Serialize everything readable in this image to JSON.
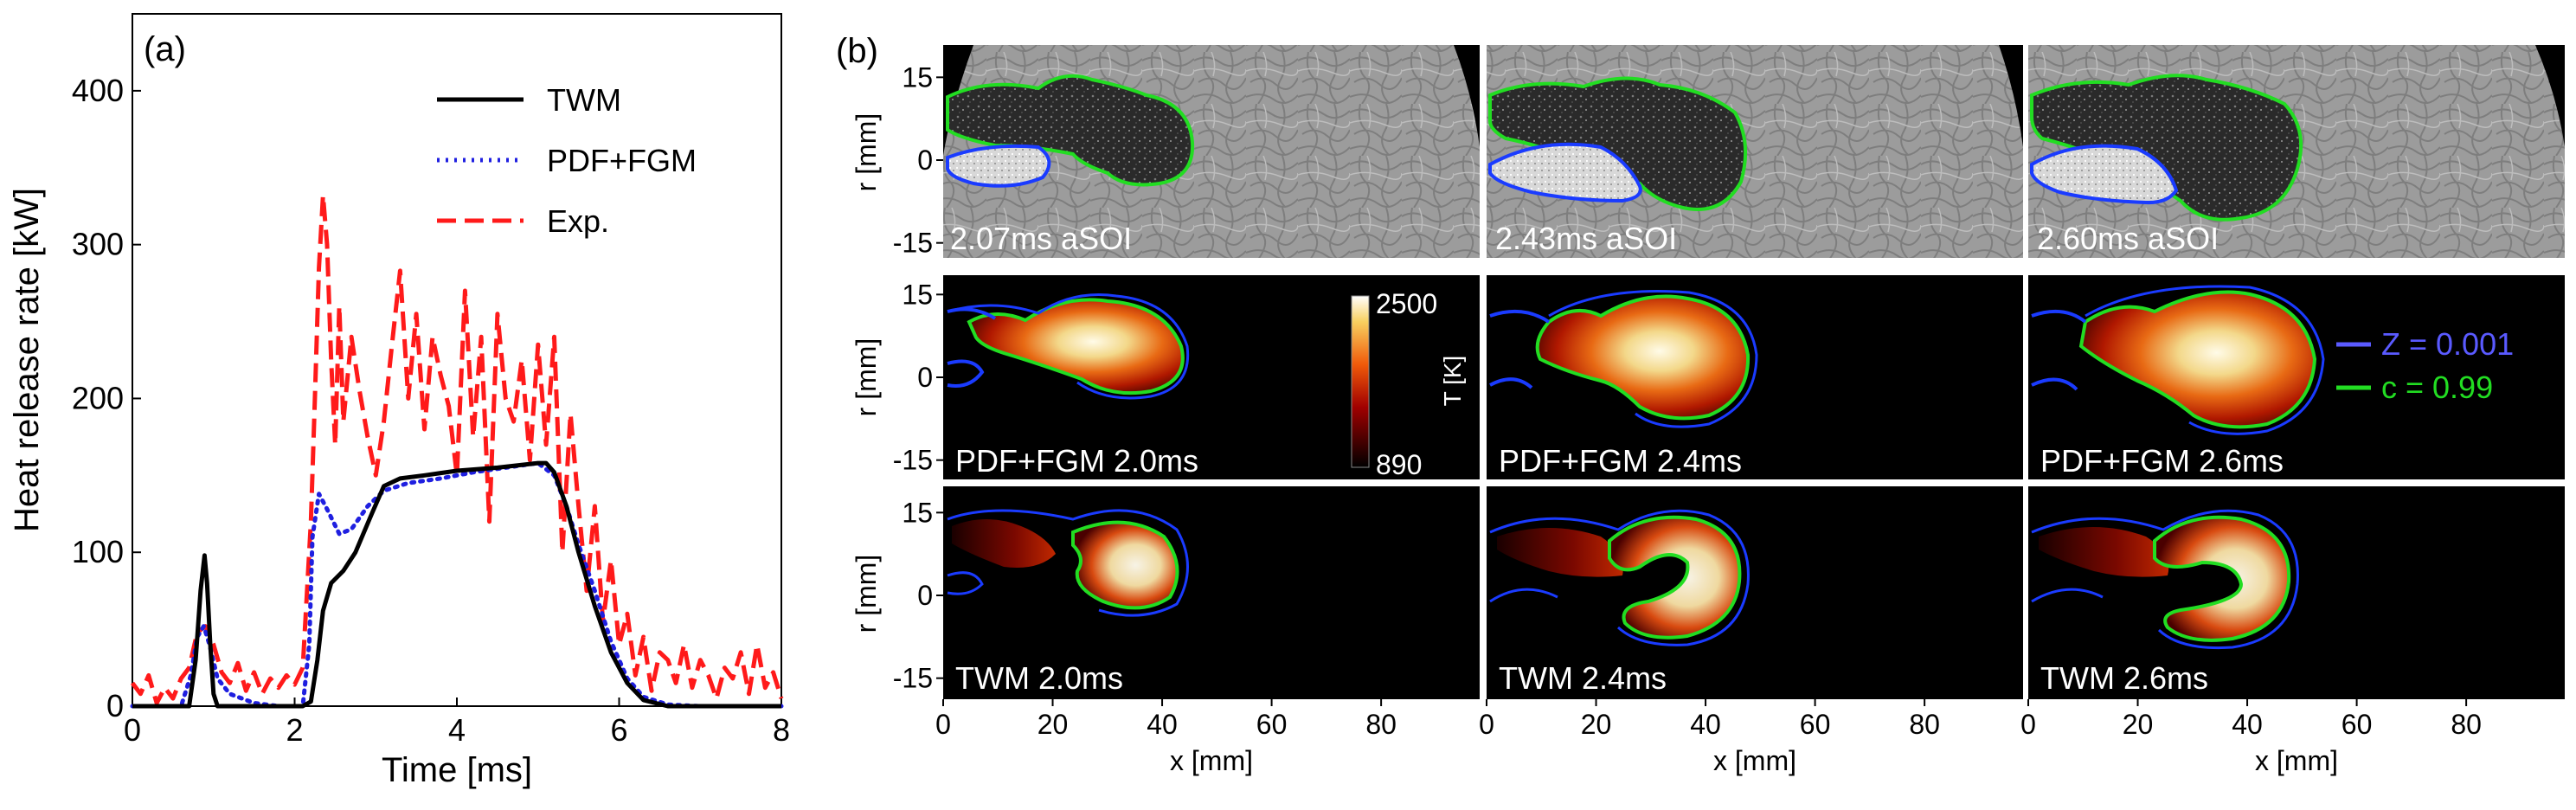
{
  "chart_data": [
    {
      "panel_label": "(a)",
      "type": "line",
      "xlabel": "Time [ms]",
      "ylabel": "Heat release rate [kW]",
      "xlim": [
        0,
        8
      ],
      "ylim": [
        0,
        450
      ],
      "xticks": [
        "0",
        "2",
        "4",
        "6",
        "8"
      ],
      "yticks": [
        "0",
        "100",
        "200",
        "300",
        "400"
      ],
      "legend_position": "top-right",
      "colors": {
        "TWM": "#000000",
        "PDF+FGM": "#1f1fe0",
        "Exp.": "#ff1a1a"
      },
      "series": [
        {
          "name": "TWM",
          "style": "solid",
          "x": [
            0,
            0.7,
            0.78,
            0.84,
            0.89,
            0.92,
            0.96,
            1.0,
            1.05,
            1.1,
            2.1,
            2.2,
            2.28,
            2.35,
            2.45,
            2.6,
            2.75,
            2.95,
            3.1,
            3.3,
            3.6,
            4.0,
            4.5,
            5.0,
            5.1,
            5.2,
            5.35,
            5.5,
            5.7,
            5.9,
            6.1,
            6.3,
            6.6,
            7.0,
            8.0
          ],
          "y": [
            0,
            0,
            30,
            75,
            98,
            80,
            40,
            8,
            0,
            0,
            0,
            3,
            30,
            62,
            80,
            88,
            100,
            125,
            143,
            148,
            150,
            153,
            155,
            158,
            158,
            152,
            130,
            100,
            65,
            35,
            15,
            4,
            0,
            0,
            0
          ]
        },
        {
          "name": "PDF+FGM",
          "style": "dotted",
          "x": [
            0,
            0.6,
            0.72,
            0.8,
            0.88,
            0.95,
            1.05,
            1.2,
            1.5,
            1.8,
            2.1,
            2.18,
            2.22,
            2.3,
            2.4,
            2.55,
            2.7,
            2.9,
            3.1,
            3.4,
            3.8,
            4.2,
            4.6,
            5.0,
            5.2,
            5.35,
            5.5,
            5.7,
            5.9,
            6.1,
            6.3,
            6.6,
            7.0,
            8.0
          ],
          "y": [
            0,
            0,
            20,
            45,
            52,
            40,
            18,
            8,
            2,
            0,
            0,
            40,
            110,
            138,
            128,
            112,
            115,
            130,
            140,
            145,
            148,
            152,
            155,
            158,
            150,
            130,
            105,
            75,
            42,
            18,
            6,
            1,
            0,
            0
          ]
        },
        {
          "name": "Exp.",
          "style": "dashed",
          "x": [
            0,
            0.1,
            0.2,
            0.3,
            0.4,
            0.5,
            0.6,
            0.7,
            0.8,
            0.9,
            1.0,
            1.1,
            1.2,
            1.3,
            1.4,
            1.5,
            1.6,
            1.7,
            1.8,
            1.9,
            2.0,
            2.1,
            2.2,
            2.25,
            2.3,
            2.35,
            2.4,
            2.45,
            2.5,
            2.55,
            2.6,
            2.7,
            2.8,
            2.9,
            3.0,
            3.1,
            3.2,
            3.3,
            3.4,
            3.5,
            3.6,
            3.7,
            3.8,
            3.9,
            4.0,
            4.1,
            4.2,
            4.3,
            4.4,
            4.5,
            4.6,
            4.7,
            4.8,
            4.9,
            5.0,
            5.1,
            5.2,
            5.3,
            5.4,
            5.5,
            5.6,
            5.7,
            5.8,
            5.9,
            6.0,
            6.1,
            6.2,
            6.3,
            6.4,
            6.5,
            6.6,
            6.7,
            6.8,
            6.9,
            7.0,
            7.1,
            7.2,
            7.3,
            7.4,
            7.5,
            7.6,
            7.7,
            7.8,
            7.9,
            8.0
          ],
          "y": [
            15,
            8,
            20,
            2,
            12,
            5,
            18,
            25,
            48,
            52,
            40,
            22,
            15,
            28,
            10,
            22,
            8,
            18,
            12,
            20,
            14,
            25,
            120,
            200,
            285,
            332,
            300,
            225,
            170,
            260,
            185,
            240,
            205,
            175,
            150,
            185,
            235,
            283,
            200,
            255,
            180,
            240,
            215,
            195,
            150,
            270,
            175,
            240,
            120,
            255,
            200,
            185,
            225,
            160,
            235,
            170,
            240,
            100,
            190,
            130,
            75,
            130,
            55,
            95,
            40,
            60,
            20,
            45,
            10,
            35,
            30,
            15,
            40,
            12,
            30,
            20,
            5,
            25,
            18,
            35,
            8,
            40,
            12,
            22,
            5
          ]
        }
      ]
    },
    {
      "panel_label": "(b)",
      "type": "heatmap",
      "xlabel": "x [mm]",
      "ylabel": "r [mm]",
      "xticks": [
        "0",
        "20",
        "40",
        "60",
        "80"
      ],
      "yticks": [
        "15",
        "0",
        "-15"
      ],
      "colorbar": {
        "label": "T [K]",
        "max_label": "2500",
        "min_label": "890"
      },
      "contour_legend": [
        {
          "label": "Z = 0.001",
          "color": "#5a5aff"
        },
        {
          "label": "c = 0.99",
          "color": "#22dd22"
        }
      ],
      "rows": [
        {
          "kind": "experiment",
          "panels": [
            "2.07ms aSOI",
            "2.43ms aSOI",
            "2.60ms aSOI"
          ]
        },
        {
          "kind": "PDF+FGM",
          "panels": [
            "PDF+FGM 2.0ms",
            "PDF+FGM 2.4ms",
            "PDF+FGM 2.6ms"
          ]
        },
        {
          "kind": "TWM",
          "panels": [
            "TWM 2.0ms",
            "TWM 2.4ms",
            "TWM 2.6ms"
          ]
        }
      ]
    }
  ]
}
